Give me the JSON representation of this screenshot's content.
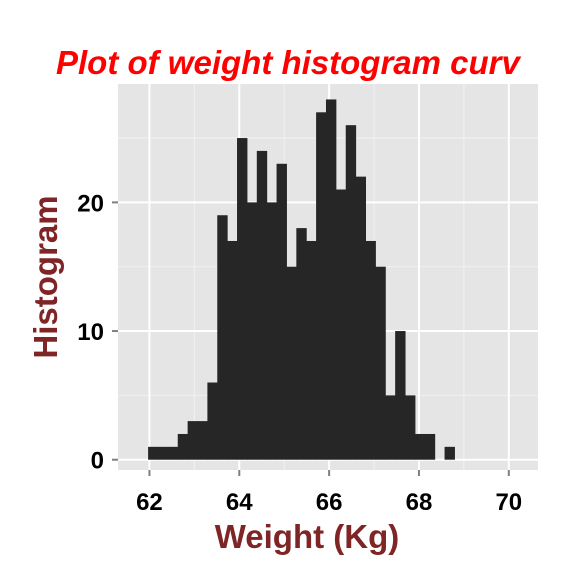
{
  "chart_data": {
    "type": "bar",
    "title": "Plot of weight histogram curv",
    "xlabel": "Weight (Kg)",
    "ylabel": "Histogram",
    "xlim": [
      61.3,
      70.65
    ],
    "ylim": [
      -0.8,
      29.2
    ],
    "x_ticks": [
      62,
      64,
      66,
      68,
      70
    ],
    "x_tick_labels": [
      "62",
      "64",
      "66",
      "68",
      "70"
    ],
    "y_ticks": [
      0,
      10,
      20
    ],
    "y_tick_labels": [
      "0",
      "10",
      "20"
    ],
    "bin_width": 0.22,
    "bins": [
      {
        "x0": 61.97,
        "count": 1
      },
      {
        "x0": 62.19,
        "count": 1
      },
      {
        "x0": 62.41,
        "count": 1
      },
      {
        "x0": 62.63,
        "count": 2
      },
      {
        "x0": 62.85,
        "count": 3
      },
      {
        "x0": 63.07,
        "count": 3
      },
      {
        "x0": 63.29,
        "count": 6
      },
      {
        "x0": 63.51,
        "count": 19
      },
      {
        "x0": 63.73,
        "count": 17
      },
      {
        "x0": 63.95,
        "count": 25
      },
      {
        "x0": 64.17,
        "count": 20
      },
      {
        "x0": 64.39,
        "count": 24
      },
      {
        "x0": 64.61,
        "count": 20
      },
      {
        "x0": 64.83,
        "count": 23
      },
      {
        "x0": 65.05,
        "count": 15
      },
      {
        "x0": 65.27,
        "count": 18
      },
      {
        "x0": 65.49,
        "count": 17
      },
      {
        "x0": 65.71,
        "count": 27
      },
      {
        "x0": 65.93,
        "count": 28
      },
      {
        "x0": 66.15,
        "count": 21
      },
      {
        "x0": 66.37,
        "count": 26
      },
      {
        "x0": 66.59,
        "count": 22
      },
      {
        "x0": 66.81,
        "count": 17
      },
      {
        "x0": 67.03,
        "count": 15
      },
      {
        "x0": 67.25,
        "count": 5
      },
      {
        "x0": 67.47,
        "count": 10
      },
      {
        "x0": 67.69,
        "count": 5
      },
      {
        "x0": 67.91,
        "count": 2
      },
      {
        "x0": 68.13,
        "count": 2
      },
      {
        "x0": 68.35,
        "count": 0
      },
      {
        "x0": 68.57,
        "count": 1
      }
    ],
    "grid": true,
    "colors": {
      "bar": "#262626",
      "panel": "#e5e5e5",
      "grid_major": "#ffffff",
      "grid_minor": "#f2f2f2",
      "title": "#ff0000",
      "axis_title": "#7f2525",
      "tick_label": "#000000"
    }
  }
}
